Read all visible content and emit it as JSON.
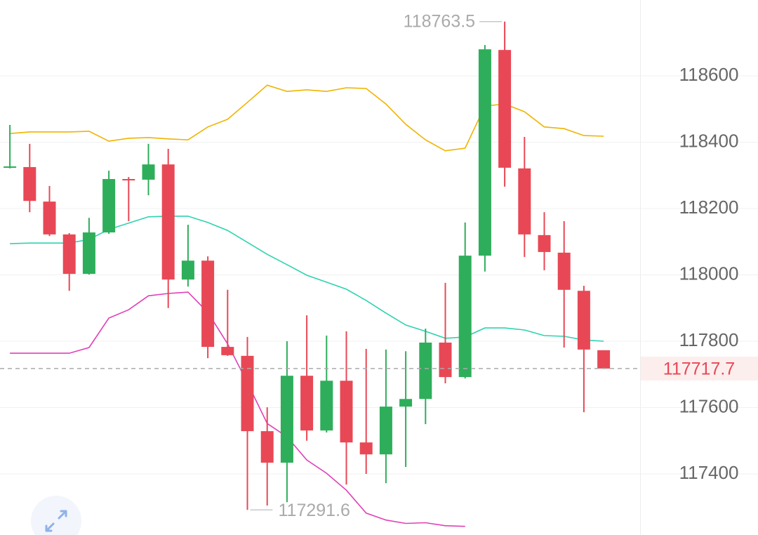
{
  "chart_data": {
    "type": "candlestick",
    "up_color": "#2eae5a",
    "down_color": "#e84855",
    "ylim": [
      117216,
      118828.6
    ],
    "yticks": [
      117400,
      117600,
      117800,
      118000,
      118200,
      118400,
      118600
    ],
    "grid": true,
    "candles": [
      {
        "open": 118323,
        "high": 118452,
        "low": 118321,
        "close": 118327
      },
      {
        "open": 118325,
        "high": 118395,
        "low": 118189,
        "close": 118223
      },
      {
        "open": 118221,
        "high": 118268,
        "low": 118117,
        "close": 118122
      },
      {
        "open": 118122,
        "high": 118126,
        "low": 117952,
        "close": 118003
      },
      {
        "open": 118003,
        "high": 118172,
        "low": 118001,
        "close": 118128
      },
      {
        "open": 118128,
        "high": 118314,
        "low": 118124,
        "close": 118289
      },
      {
        "open": 118289,
        "high": 118295,
        "low": 118162,
        "close": 118285
      },
      {
        "open": 118287,
        "high": 118395,
        "low": 118240,
        "close": 118333
      },
      {
        "open": 118333,
        "high": 118380,
        "low": 117900,
        "close": 117986
      },
      {
        "open": 117986,
        "high": 118151,
        "low": 117965,
        "close": 118043
      },
      {
        "open": 118043,
        "high": 118056,
        "low": 117749,
        "close": 117783
      },
      {
        "open": 117783,
        "high": 117955,
        "low": 117756,
        "close": 117758
      },
      {
        "open": 117756,
        "high": 117813,
        "low": 117291.6,
        "close": 117529
      },
      {
        "open": 117529,
        "high": 117601,
        "low": 117305,
        "close": 117434
      },
      {
        "open": 117434,
        "high": 117800,
        "low": 117315,
        "close": 117696
      },
      {
        "open": 117696,
        "high": 117878,
        "low": 117500,
        "close": 117531
      },
      {
        "open": 117531,
        "high": 117817,
        "low": 117525,
        "close": 117681
      },
      {
        "open": 117681,
        "high": 117830,
        "low": 117368,
        "close": 117495
      },
      {
        "open": 117495,
        "high": 117777,
        "low": 117400,
        "close": 117459
      },
      {
        "open": 117459,
        "high": 117775,
        "low": 117372,
        "close": 117603
      },
      {
        "open": 117603,
        "high": 117770,
        "low": 117421,
        "close": 117626
      },
      {
        "open": 117626,
        "high": 117838,
        "low": 117550,
        "close": 117796
      },
      {
        "open": 117796,
        "high": 117976,
        "low": 117673,
        "close": 117692
      },
      {
        "open": 117692,
        "high": 118158,
        "low": 117688,
        "close": 118058
      },
      {
        "open": 118058,
        "high": 118693,
        "low": 118010,
        "close": 118680
      },
      {
        "open": 118678,
        "high": 118763.5,
        "low": 118266,
        "close": 118323
      },
      {
        "open": 118321,
        "high": 118416,
        "low": 118054,
        "close": 118122
      },
      {
        "open": 118120,
        "high": 118189,
        "low": 118014,
        "close": 118069
      },
      {
        "open": 118067,
        "high": 118162,
        "low": 117781,
        "close": 117955
      },
      {
        "open": 117952,
        "high": 117967,
        "low": 117586,
        "close": 117775
      },
      {
        "open": 117773,
        "high": 117773,
        "low": 117717.7,
        "close": 117717.7
      }
    ],
    "series": [
      {
        "color": "#f0b400",
        "values": [
          118426,
          118431,
          118431,
          118431,
          118433,
          118403,
          118412,
          118414,
          118410,
          118407,
          118446,
          118469,
          118520,
          118572,
          118553,
          118558,
          118553,
          118564,
          118562,
          118515,
          118454,
          118407,
          118374,
          118382,
          118509,
          118515,
          118492,
          118446,
          118441,
          118420,
          118418
        ]
      },
      {
        "color": "#2fd2b0",
        "values": [
          118094,
          118096,
          118096,
          118096,
          118107,
          118137,
          118156,
          118175,
          118177,
          118177,
          118158,
          118134,
          118098,
          118062,
          118031,
          117999,
          117978,
          117957,
          117923,
          117885,
          117849,
          117830,
          117809,
          117813,
          117840,
          117840,
          117834,
          117817,
          117815,
          117804,
          117800
        ]
      },
      {
        "color": "#e040b8",
        "values": [
          117764,
          117764,
          117764,
          117764,
          117781,
          117870,
          117895,
          117937,
          117944,
          117948,
          117887,
          117792,
          117675,
          117552,
          117512,
          117442,
          117402,
          117351,
          117282,
          117261,
          117251,
          117253,
          117244,
          117242,
          null,
          null,
          null,
          null,
          null,
          null,
          null
        ]
      }
    ]
  }
}
